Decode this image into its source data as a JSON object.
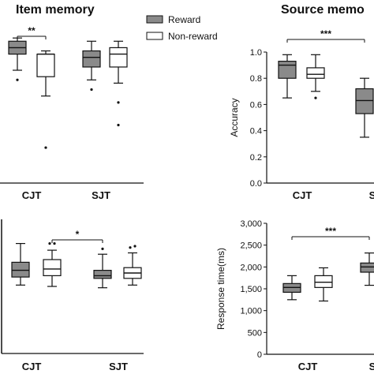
{
  "legend": {
    "reward_label": "Reward",
    "nonreward_label": "Non-reward",
    "reward_color": "#8a8a8a",
    "nonreward_color": "#ffffff",
    "placement": "top-center"
  },
  "chart_data": [
    {
      "type": "box",
      "title": "Item memory",
      "categories": [
        "CJT",
        "SJT"
      ],
      "ylim": [
        0.55,
        1.02
      ],
      "boxes": [
        {
          "category": "CJT",
          "series": "Reward",
          "min": 0.9,
          "q1": 0.95,
          "median": 0.97,
          "q3": 0.99,
          "max": 1.0,
          "outliers": [
            0.87
          ]
        },
        {
          "category": "CJT",
          "series": "Non-reward",
          "min": 0.82,
          "q1": 0.88,
          "median": 0.95,
          "q3": 0.95,
          "max": 0.96,
          "outliers": [
            0.66
          ]
        },
        {
          "category": "SJT",
          "series": "Reward",
          "min": 0.87,
          "q1": 0.91,
          "median": 0.94,
          "q3": 0.96,
          "max": 0.99,
          "outliers": [
            0.84
          ]
        },
        {
          "category": "SJT",
          "series": "Non-reward",
          "min": 0.86,
          "q1": 0.91,
          "median": 0.95,
          "q3": 0.97,
          "max": 0.99,
          "outliers": [
            0.8,
            0.73
          ]
        }
      ],
      "significance": [
        {
          "label": "**",
          "from": "CJT Reward",
          "to": "CJT Non-reward"
        }
      ]
    },
    {
      "type": "box",
      "title": "Source memo",
      "categories": [
        "CJT",
        "S"
      ],
      "ylabel": "Accuracy",
      "yticks": [
        "0.0",
        "0.2",
        "0.4",
        "0.6",
        "0.8",
        "1.0"
      ],
      "ylim": [
        0.0,
        1.0
      ],
      "boxes": [
        {
          "category": "CJT",
          "series": "Reward",
          "min": 0.65,
          "q1": 0.8,
          "median": 0.9,
          "q3": 0.93,
          "max": 0.98,
          "outliers": []
        },
        {
          "category": "CJT",
          "series": "Non-reward",
          "min": 0.7,
          "q1": 0.8,
          "median": 0.83,
          "q3": 0.88,
          "max": 0.98,
          "outliers": [
            0.65
          ]
        },
        {
          "category": "S",
          "series": "Reward",
          "min": 0.35,
          "q1": 0.53,
          "median": 0.63,
          "q3": 0.72,
          "max": 0.8,
          "outliers": []
        }
      ],
      "significance": [
        {
          "label": "***",
          "from": "CJT Reward",
          "to": "S Reward"
        }
      ]
    },
    {
      "type": "box",
      "categories": [
        "CJT",
        "SJT"
      ],
      "ylim": [
        0,
        10
      ],
      "boxes": [
        {
          "category": "CJT",
          "series": "Reward",
          "min": 5.1,
          "q1": 5.7,
          "median": 6.2,
          "q3": 6.8,
          "max": 8.2,
          "outliers": []
        },
        {
          "category": "CJT",
          "series": "Non-reward",
          "min": 5.0,
          "q1": 5.8,
          "median": 6.3,
          "q3": 7.0,
          "max": 7.7,
          "outliers": [
            8.2,
            8.2
          ]
        },
        {
          "category": "SJT",
          "series": "Reward",
          "min": 4.9,
          "q1": 5.6,
          "median": 5.8,
          "q3": 6.2,
          "max": 7.4,
          "outliers": [
            7.8
          ]
        },
        {
          "category": "SJT",
          "series": "Non-reward",
          "min": 5.1,
          "q1": 5.6,
          "median": 6.0,
          "q3": 6.4,
          "max": 7.5,
          "outliers": [
            7.9,
            8.0
          ]
        }
      ],
      "significance": [
        {
          "label": "*",
          "from": "CJT Non-reward",
          "to": "SJT Reward"
        }
      ]
    },
    {
      "type": "box",
      "categories": [
        "CJT",
        "S"
      ],
      "ylabel": "Response time(ms)",
      "yticks": [
        "0",
        "500",
        "1,000",
        "1,500",
        "2,000",
        "2,500",
        "3,000"
      ],
      "ylim": [
        0,
        3000
      ],
      "boxes": [
        {
          "category": "CJT",
          "series": "Reward",
          "min": 1250,
          "q1": 1420,
          "median": 1530,
          "q3": 1620,
          "max": 1800,
          "outliers": []
        },
        {
          "category": "CJT",
          "series": "Non-reward",
          "min": 1220,
          "q1": 1530,
          "median": 1650,
          "q3": 1800,
          "max": 1980,
          "outliers": []
        },
        {
          "category": "S",
          "series": "Reward",
          "min": 1580,
          "q1": 1880,
          "median": 2000,
          "q3": 2090,
          "max": 2320,
          "outliers": []
        }
      ],
      "significance": [
        {
          "label": "***",
          "from": "CJT Reward",
          "to": "S Reward"
        }
      ]
    }
  ]
}
